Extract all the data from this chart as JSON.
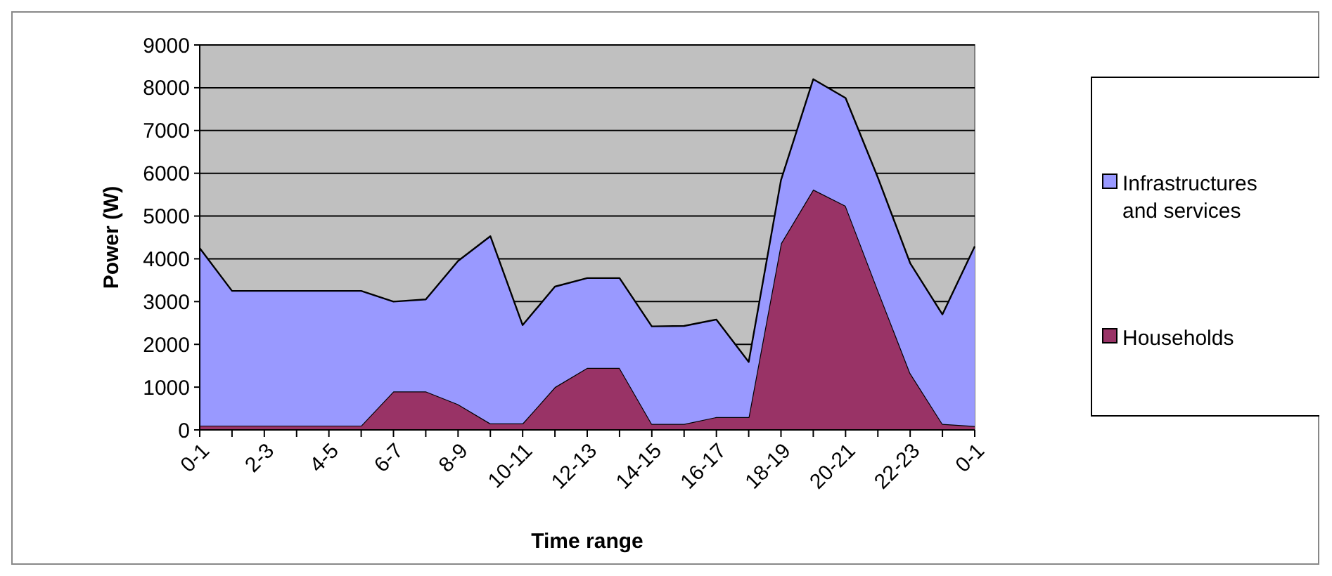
{
  "chart_data": {
    "type": "area",
    "stacked": true,
    "xlabel": "Time range",
    "ylabel": "Power (W)",
    "categories": [
      "0-1",
      null,
      "2-3",
      null,
      "4-5",
      null,
      "6-7",
      null,
      "8-9",
      null,
      "10-11",
      null,
      "12-13",
      null,
      "14-15",
      null,
      "16-17",
      null,
      "18-19",
      null,
      "20-21",
      null,
      "22-23",
      null,
      "0-1"
    ],
    "series": [
      {
        "name": "Households",
        "color": "#993366",
        "values": [
          100,
          100,
          100,
          100,
          100,
          100,
          900,
          900,
          600,
          150,
          150,
          1000,
          1450,
          1450,
          140,
          140,
          300,
          300,
          4360,
          5620,
          5240,
          3270,
          1330,
          140,
          90
        ]
      },
      {
        "name": "Infrastructures and services",
        "color": "#9999ff",
        "values": [
          4150,
          3150,
          3150,
          3150,
          3150,
          3150,
          2100,
          2150,
          3350,
          4380,
          2300,
          2350,
          2100,
          2100,
          2280,
          2290,
          2280,
          1290,
          1480,
          2580,
          2520,
          2630,
          2570,
          2560,
          4200
        ]
      }
    ],
    "ylim": [
      0,
      9000
    ],
    "yticks": [
      0,
      1000,
      2000,
      3000,
      4000,
      5000,
      6000,
      7000,
      8000,
      9000
    ],
    "grid": "y",
    "legend": "right"
  }
}
